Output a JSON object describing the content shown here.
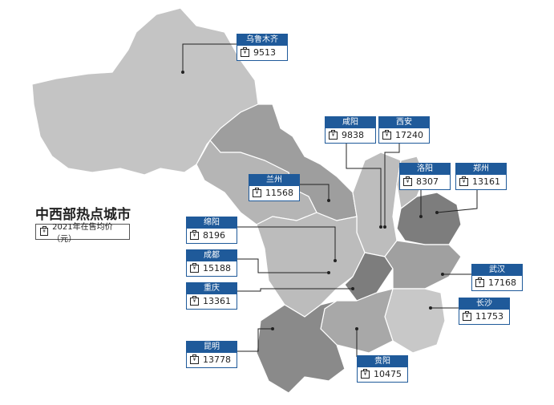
{
  "title": "中西部热点城市",
  "legend": {
    "icon": "price-tag-icon",
    "text": "2021年在售均价（元）"
  },
  "colors": {
    "label_header": "#1f5a9a",
    "light": "#c8c8c8",
    "mid": "#a0a0a0",
    "dark": "#7d7d7d"
  },
  "cities": [
    {
      "name": "乌鲁木齐",
      "price": "9513"
    },
    {
      "name": "咸阳",
      "price": "9838"
    },
    {
      "name": "西安",
      "price": "17240"
    },
    {
      "name": "兰州",
      "price": "11568"
    },
    {
      "name": "洛阳",
      "price": "8307"
    },
    {
      "name": "郑州",
      "price": "13161"
    },
    {
      "name": "绵阳",
      "price": "8196"
    },
    {
      "name": "成都",
      "price": "15188"
    },
    {
      "name": "重庆",
      "price": "13361"
    },
    {
      "name": "武汉",
      "price": "17168"
    },
    {
      "name": "长沙",
      "price": "11753"
    },
    {
      "name": "昆明",
      "price": "13778"
    },
    {
      "name": "贵阳",
      "price": "10475"
    }
  ]
}
